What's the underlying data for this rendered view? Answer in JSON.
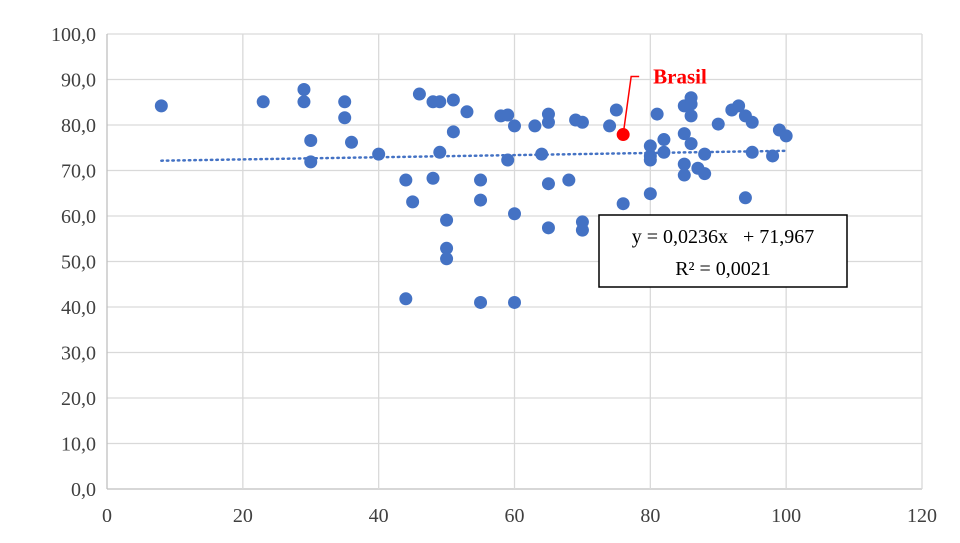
{
  "chart_data": {
    "type": "scatter",
    "xlim": [
      0,
      120
    ],
    "ylim": [
      0,
      100
    ],
    "x_ticks": [
      "0",
      "20",
      "40",
      "60",
      "80",
      "100",
      "120"
    ],
    "y_ticks": [
      "0,0",
      "10,0",
      "20,0",
      "30,0",
      "40,0",
      "50,0",
      "60,0",
      "70,0",
      "80,0",
      "90,0",
      "100,0"
    ],
    "grid": "both",
    "point_color": "#4472C4",
    "highlight_color": "#FF0000",
    "points": [
      {
        "x": 8,
        "y": 84.2
      },
      {
        "x": 23,
        "y": 85.1
      },
      {
        "x": 29,
        "y": 87.8
      },
      {
        "x": 29,
        "y": 85.1
      },
      {
        "x": 30,
        "y": 76.6
      },
      {
        "x": 30,
        "y": 71.9
      },
      {
        "x": 35,
        "y": 85.1
      },
      {
        "x": 35,
        "y": 81.6
      },
      {
        "x": 36,
        "y": 76.2
      },
      {
        "x": 40,
        "y": 73.6
      },
      {
        "x": 44,
        "y": 67.9
      },
      {
        "x": 44,
        "y": 41.8
      },
      {
        "x": 45,
        "y": 63.1
      },
      {
        "x": 46,
        "y": 86.8
      },
      {
        "x": 48,
        "y": 85.1
      },
      {
        "x": 48,
        "y": 68.3
      },
      {
        "x": 49,
        "y": 85.1
      },
      {
        "x": 49,
        "y": 74.0
      },
      {
        "x": 50,
        "y": 59.1
      },
      {
        "x": 50,
        "y": 52.9
      },
      {
        "x": 50,
        "y": 50.6
      },
      {
        "x": 51,
        "y": 85.5
      },
      {
        "x": 51,
        "y": 78.5
      },
      {
        "x": 53,
        "y": 82.9
      },
      {
        "x": 55,
        "y": 67.9
      },
      {
        "x": 55,
        "y": 63.5
      },
      {
        "x": 55,
        "y": 41.0
      },
      {
        "x": 58,
        "y": 82.0
      },
      {
        "x": 59,
        "y": 82.2
      },
      {
        "x": 59,
        "y": 72.3
      },
      {
        "x": 60,
        "y": 79.8
      },
      {
        "x": 60,
        "y": 60.5
      },
      {
        "x": 60,
        "y": 41.0
      },
      {
        "x": 63,
        "y": 79.8
      },
      {
        "x": 64,
        "y": 73.6
      },
      {
        "x": 65,
        "y": 82.4
      },
      {
        "x": 65,
        "y": 80.6
      },
      {
        "x": 65,
        "y": 67.1
      },
      {
        "x": 65,
        "y": 57.4
      },
      {
        "x": 68,
        "y": 67.9
      },
      {
        "x": 69,
        "y": 81.1
      },
      {
        "x": 70,
        "y": 80.6
      },
      {
        "x": 70,
        "y": 58.7
      },
      {
        "x": 70,
        "y": 56.9
      },
      {
        "x": 74,
        "y": 79.8
      },
      {
        "x": 75,
        "y": 83.3
      },
      {
        "x": 76,
        "y": 62.7
      },
      {
        "x": 80,
        "y": 75.4
      },
      {
        "x": 80,
        "y": 73.2
      },
      {
        "x": 80,
        "y": 72.3
      },
      {
        "x": 80,
        "y": 64.9
      },
      {
        "x": 81,
        "y": 82.4
      },
      {
        "x": 82,
        "y": 76.8
      },
      {
        "x": 82,
        "y": 74.0
      },
      {
        "x": 85,
        "y": 84.2
      },
      {
        "x": 85,
        "y": 78.1
      },
      {
        "x": 85,
        "y": 71.4
      },
      {
        "x": 85,
        "y": 69.0
      },
      {
        "x": 86,
        "y": 86.0
      },
      {
        "x": 86,
        "y": 84.6
      },
      {
        "x": 86,
        "y": 82.0
      },
      {
        "x": 86,
        "y": 75.9
      },
      {
        "x": 87,
        "y": 70.5
      },
      {
        "x": 88,
        "y": 73.6
      },
      {
        "x": 88,
        "y": 69.3
      },
      {
        "x": 90,
        "y": 80.2
      },
      {
        "x": 92,
        "y": 83.3
      },
      {
        "x": 93,
        "y": 84.2
      },
      {
        "x": 94,
        "y": 82.0
      },
      {
        "x": 94,
        "y": 64.0
      },
      {
        "x": 95,
        "y": 80.6
      },
      {
        "x": 95,
        "y": 74.0
      },
      {
        "x": 98,
        "y": 73.2
      },
      {
        "x": 99,
        "y": 78.9
      },
      {
        "x": 100,
        "y": 77.6
      }
    ],
    "highlight": {
      "label": "Brasil",
      "x": 76,
      "y": 77.9
    },
    "trendline": {
      "slope": 0.0236,
      "intercept": 71.967,
      "x_start": 8,
      "x_end": 100,
      "style": "dotted",
      "color": "#4472C4"
    },
    "equation": {
      "line1": "y = 0,0236x   + 71,967",
      "line2": "R² = 0,0021"
    }
  }
}
